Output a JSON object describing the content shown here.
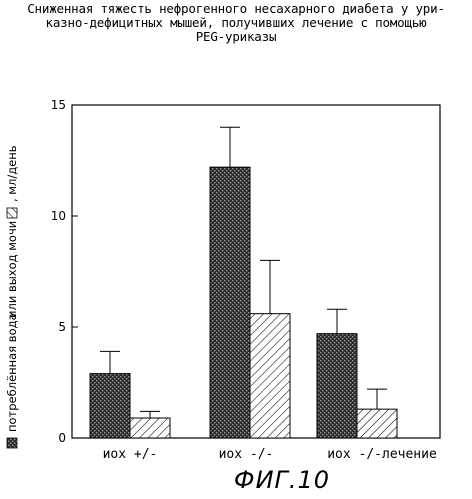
{
  "title_lines": [
    "Сниженная тяжесть нефрогенного несахарного диабета у ури-",
    "казно-дефицитных мышей, получивших лечение с помощью",
    "PEG-уриказы"
  ],
  "figure_label": "ФИГ.10",
  "colors": {
    "series_water": "#3a3a3a",
    "series_urine": "#ffffff",
    "axis": "#000000"
  },
  "chart_data": {
    "type": "bar",
    "categories": [
      "иох +/-",
      "иох -/-",
      "иох -/-лечение"
    ],
    "series": [
      {
        "name": "потреблённая вода",
        "pattern": "crosshatch-dark",
        "values": [
          2.9,
          12.2,
          4.7
        ],
        "errors": [
          1.0,
          1.8,
          1.1
        ]
      },
      {
        "name": "выход мочи",
        "pattern": "diagonal-hatch",
        "values": [
          0.9,
          5.6,
          1.3
        ],
        "errors": [
          0.3,
          2.4,
          0.9
        ]
      }
    ],
    "ylabel_parts": [
      "потреблённая вода",
      "или выход мочи",
      ", мл/день"
    ],
    "yticks": [
      0,
      5,
      10,
      15
    ],
    "ylim": [
      0,
      15
    ],
    "grid": false
  }
}
